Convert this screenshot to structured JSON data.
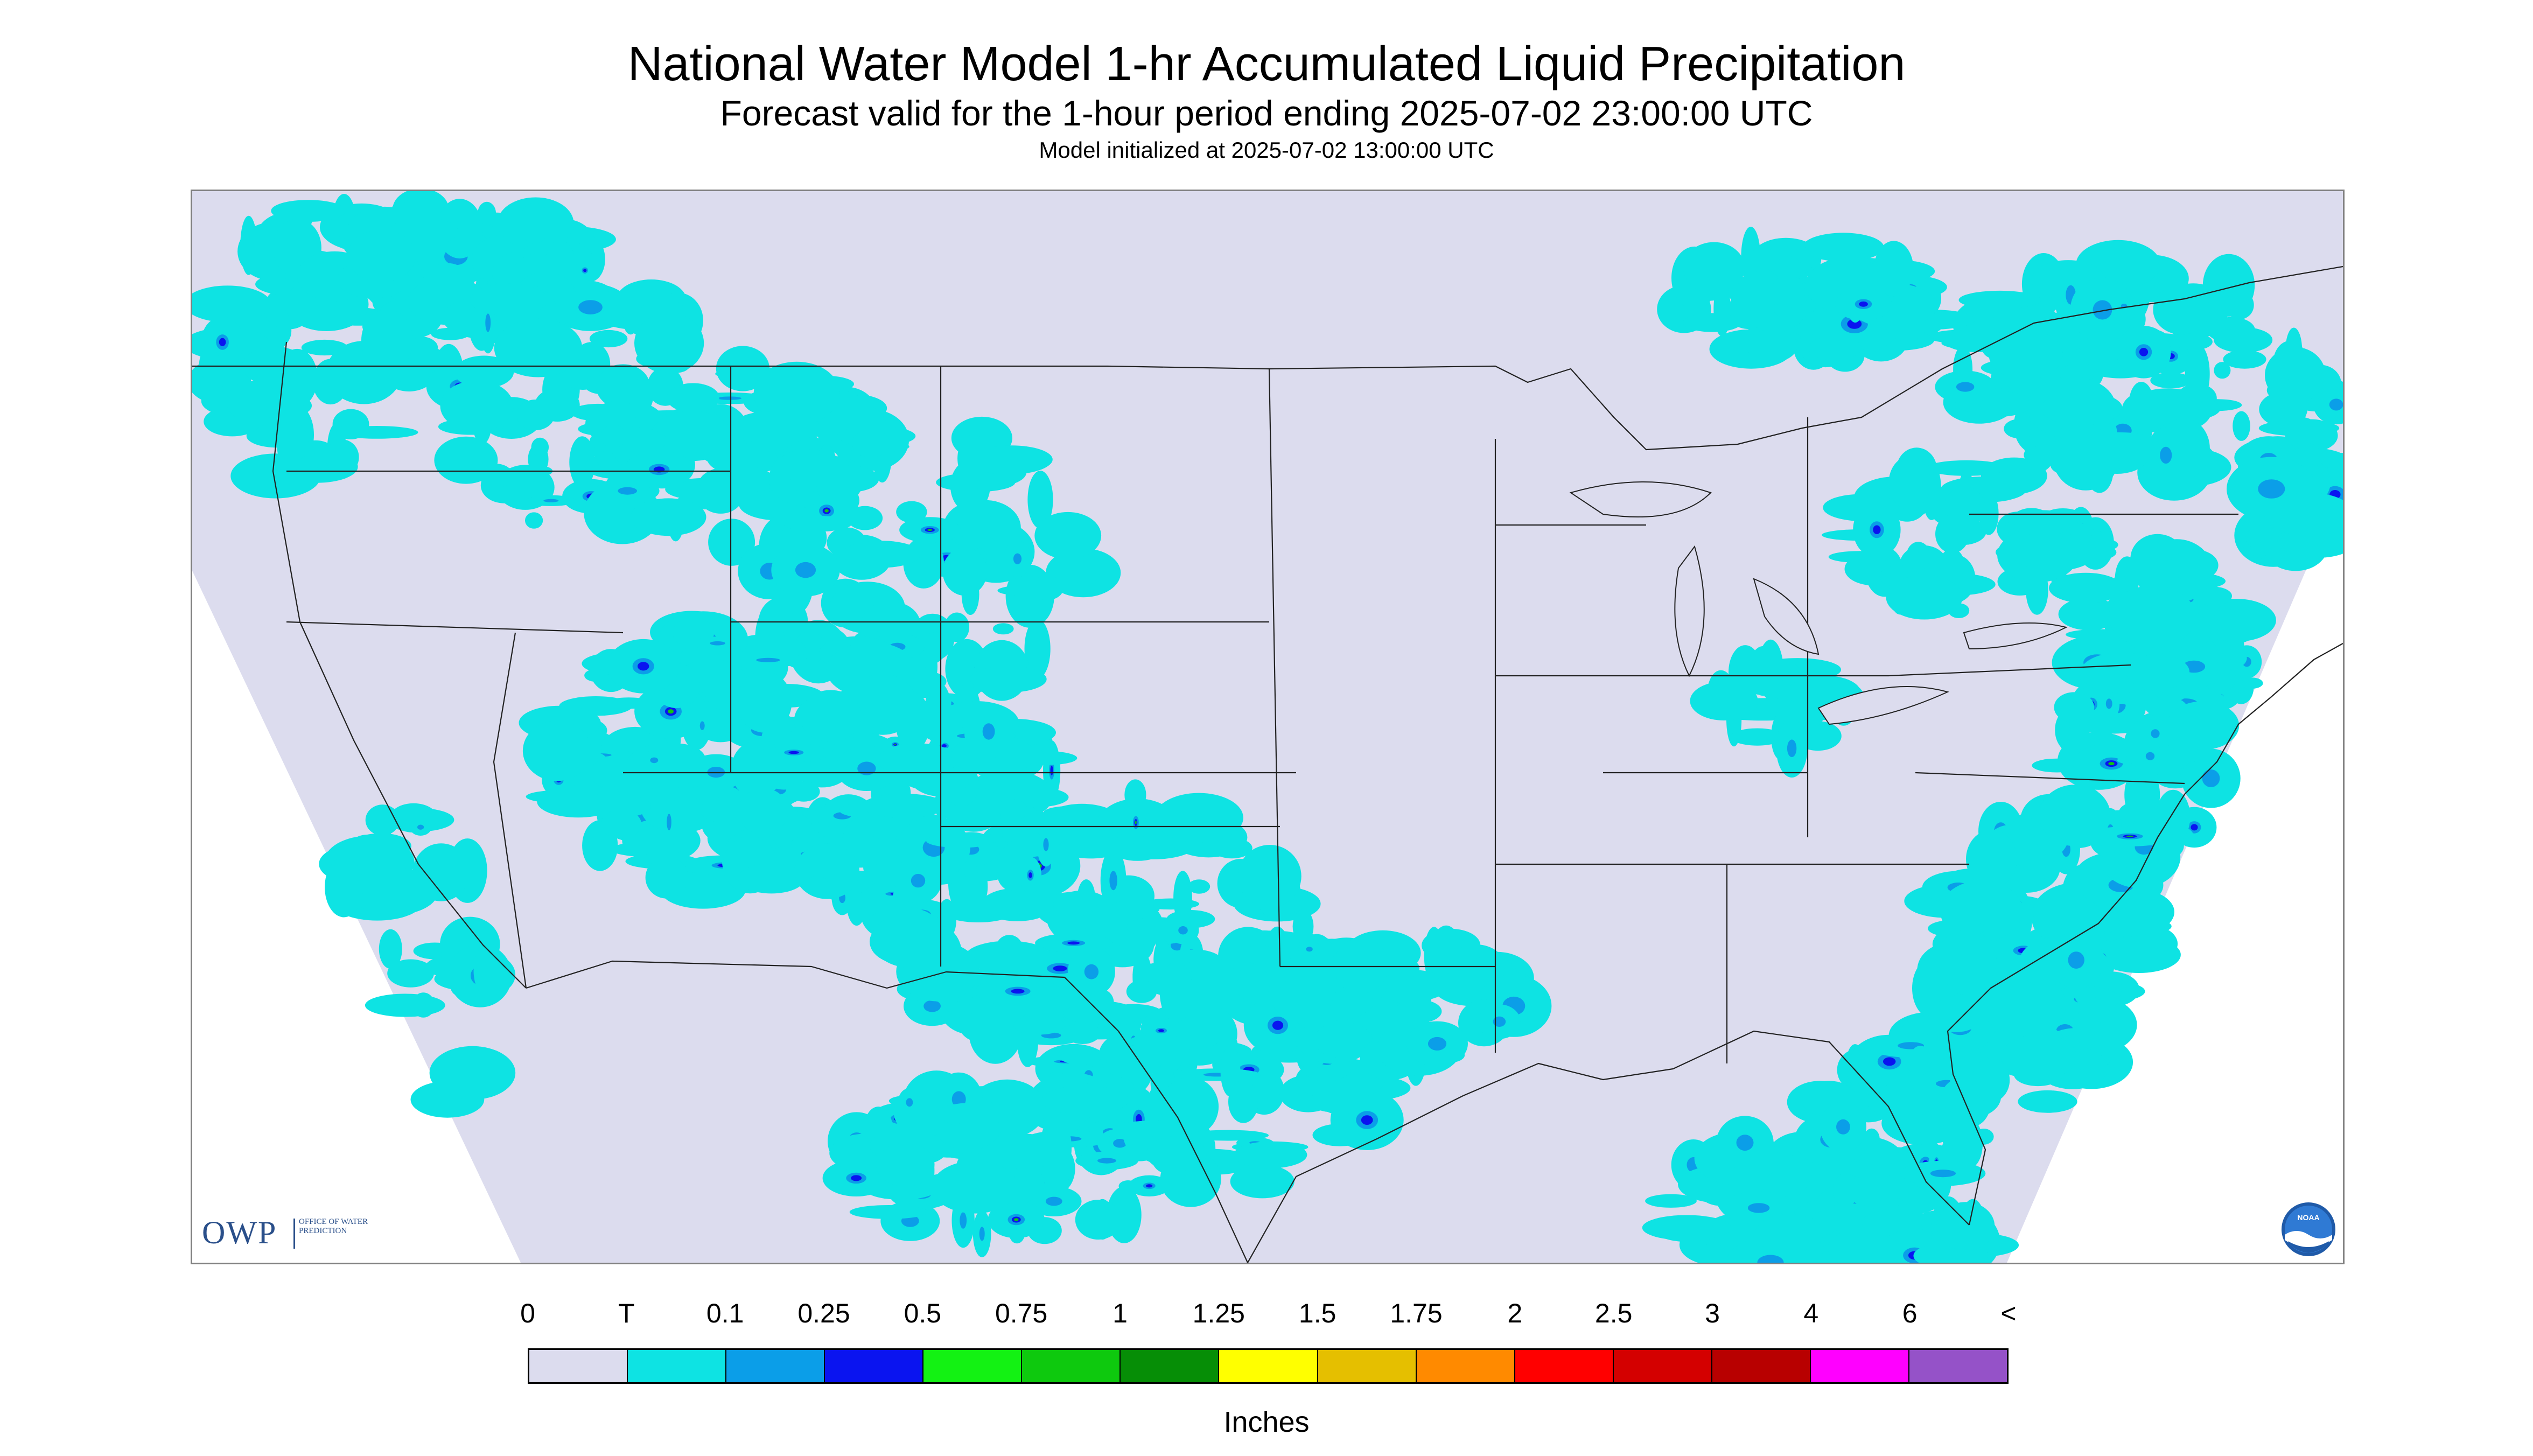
{
  "header": {
    "title": "National Water Model 1-hr Accumulated Liquid Precipitation",
    "subtitle": "Forecast valid for the 1-hour period ending 2025-07-02 23:00:00 UTC",
    "init": "Model initialized at 2025-07-02 13:00:00 UTC"
  },
  "map": {
    "background_color": "#dcdcee",
    "outside_domain_color": "#ffffff",
    "trace_color": "#0ee3e3",
    "light_color": "#0b9ee8",
    "moderate_color": "#0a14f0",
    "heavy_color": "#13c413",
    "border_color": "#222222",
    "region": "Contiguous United States"
  },
  "logos": {
    "owp_letters": "OWP",
    "owp_text": "Office of Water Prediction",
    "noaa_text": "NOAA"
  },
  "legend": {
    "units": "Inches",
    "labels": [
      "0",
      "T",
      "0.1",
      "0.25",
      "0.5",
      "0.75",
      "1",
      "1.25",
      "1.5",
      "1.75",
      "2",
      "2.5",
      "3",
      "4",
      "6",
      "<"
    ],
    "colors": [
      "#dcdcee",
      "#0ee3e3",
      "#0b9ee8",
      "#0a14f0",
      "#13f213",
      "#0ec90e",
      "#068e06",
      "#ffff00",
      "#e5bf00",
      "#ff8a00",
      "#ff0000",
      "#d40000",
      "#b80000",
      "#ff00ff",
      "#9552c8"
    ]
  }
}
